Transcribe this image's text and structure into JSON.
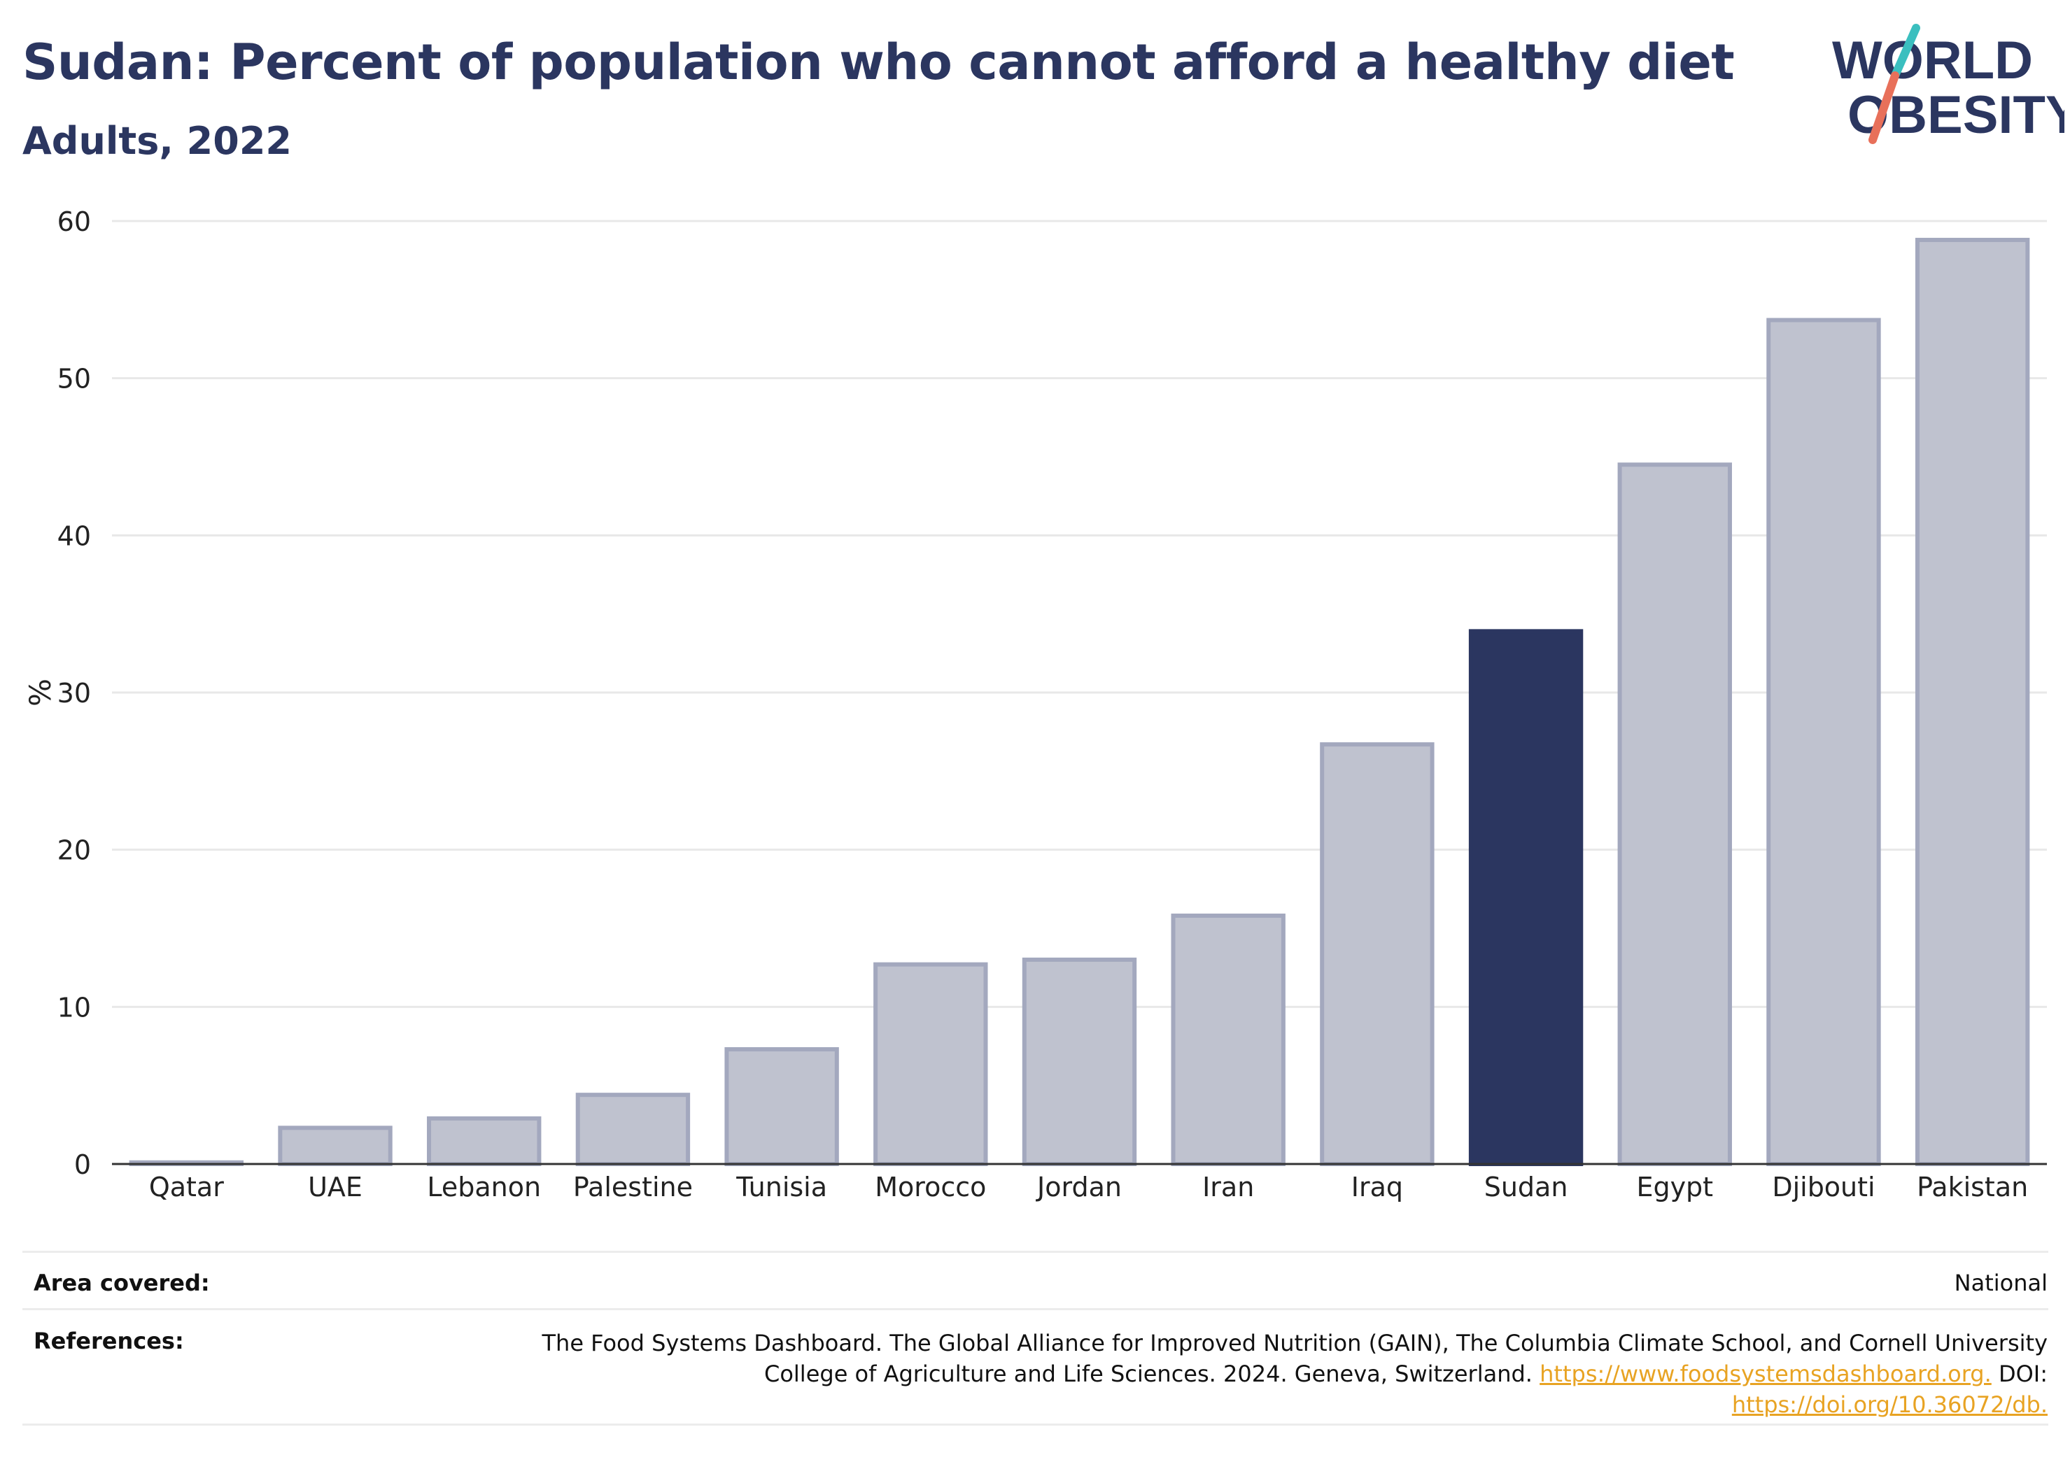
{
  "header": {
    "title": "Sudan: Percent of population who cannot afford a healthy diet",
    "subtitle": "Adults, 2022"
  },
  "logo": {
    "line1": "WORLD",
    "line2": "OBESITY",
    "text_color": "#2b3660",
    "slash_colors": [
      "#3bbfbf",
      "#e8705a"
    ]
  },
  "colors": {
    "highlight_bar": "#2b3660",
    "bar_fill": "#bfc2cf",
    "bar_stroke": "#a3a8be",
    "grid": "#e8e8e8",
    "axis": "#333333",
    "link": "#e8a323"
  },
  "chart_data": {
    "type": "bar",
    "title": "Sudan: Percent of population who cannot afford a healthy diet",
    "subtitle": "Adults, 2022",
    "xlabel": "",
    "ylabel": "%",
    "ylim": [
      0,
      60
    ],
    "yticks": [
      0,
      10,
      20,
      30,
      40,
      50,
      60
    ],
    "grid": true,
    "highlight": "Sudan",
    "categories": [
      "Qatar",
      "UAE",
      "Lebanon",
      "Palestine",
      "Tunisia",
      "Morocco",
      "Jordan",
      "Iran",
      "Iraq",
      "Sudan",
      "Egypt",
      "Djibouti",
      "Pakistan"
    ],
    "values": [
      0.1,
      2.3,
      2.9,
      4.4,
      7.3,
      12.7,
      13.0,
      15.8,
      26.7,
      33.9,
      44.5,
      53.7,
      58.8
    ]
  },
  "footer": {
    "area_label": "Area covered:",
    "area_value": "National",
    "references_label": "References:",
    "references_text": "The Food Systems Dashboard. The Global Alliance for Improved Nutrition (GAIN), The Columbia Climate School, and Cornell University College of Agriculture and Life Sciences. 2024. Geneva, Switzerland.",
    "references_link1": "https://www.foodsystemsdashboard.org.",
    "references_doi_label": "DOI:",
    "references_link2": "https://doi.org/10.36072/db."
  }
}
